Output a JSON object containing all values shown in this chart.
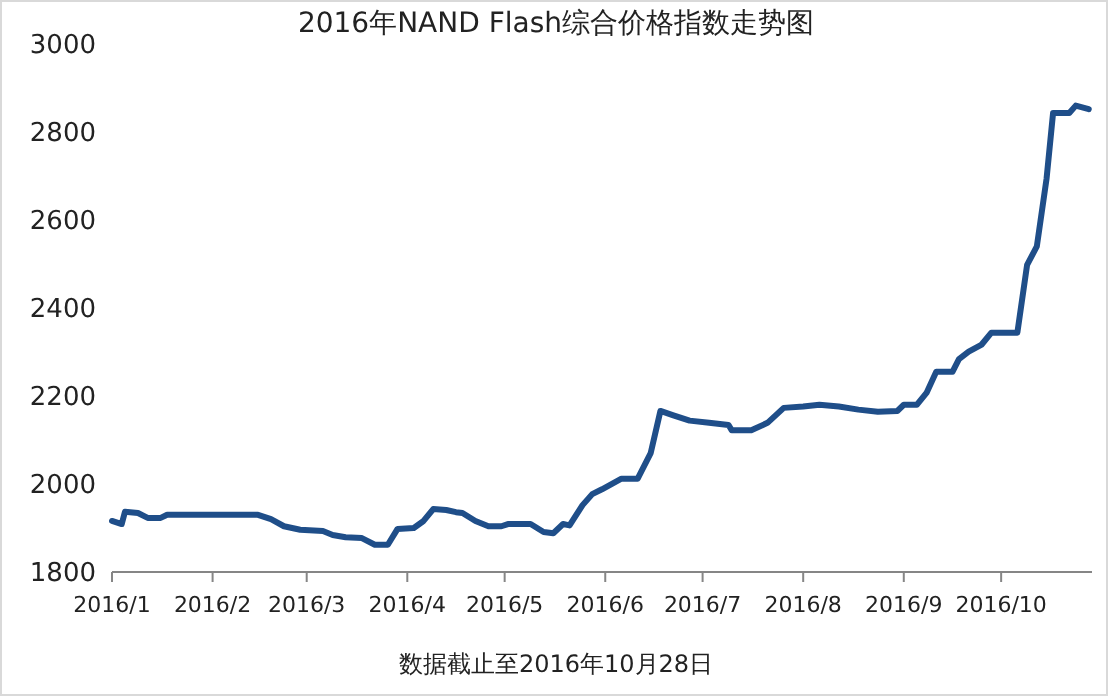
{
  "chart_data": {
    "type": "line",
    "title": "2016年NAND Flash综合价格指数走势图",
    "x": [
      "2016-01-01",
      "2016-01-04",
      "2016-01-05",
      "2016-01-09",
      "2016-01-12",
      "2016-01-16",
      "2016-01-18",
      "2016-02-15",
      "2016-02-19",
      "2016-02-23",
      "2016-02-28",
      "2016-03-06",
      "2016-03-09",
      "2016-03-13",
      "2016-03-18",
      "2016-03-22",
      "2016-03-26",
      "2016-03-29",
      "2016-04-03",
      "2016-04-06",
      "2016-04-09",
      "2016-04-13",
      "2016-04-16",
      "2016-04-18",
      "2016-04-22",
      "2016-04-26",
      "2016-04-30",
      "2016-05-02",
      "2016-05-09",
      "2016-05-13",
      "2016-05-16",
      "2016-05-19",
      "2016-05-21",
      "2016-05-25",
      "2016-05-28",
      "2016-05-31",
      "2016-06-06",
      "2016-06-11",
      "2016-06-15",
      "2016-06-18",
      "2016-06-22",
      "2016-06-27",
      "2016-07-03",
      "2016-07-09",
      "2016-07-10",
      "2016-07-16",
      "2016-07-21",
      "2016-07-26",
      "2016-08-01",
      "2016-08-06",
      "2016-08-12",
      "2016-08-18",
      "2016-08-24",
      "2016-08-30",
      "2016-09-01",
      "2016-09-05",
      "2016-09-08",
      "2016-09-11",
      "2016-09-16",
      "2016-09-18",
      "2016-09-21",
      "2016-09-25",
      "2016-09-28",
      "2016-10-06",
      "2016-10-09",
      "2016-10-12",
      "2016-10-15",
      "2016-10-17",
      "2016-10-22",
      "2016-10-24",
      "2016-10-28"
    ],
    "series": [
      {
        "color": "#1f4e89",
        "values": [
          1916,
          1909,
          1937,
          1934,
          1923,
          1923,
          1930,
          1930,
          1920,
          1904,
          1896,
          1893,
          1884,
          1879,
          1877,
          1862,
          1862,
          1898,
          1900,
          1916,
          1943,
          1941,
          1936,
          1934,
          1916,
          1904,
          1904,
          1909,
          1909,
          1891,
          1888,
          1909,
          1906,
          1952,
          1977,
          1988,
          2012,
          2012,
          2070,
          2166,
          2156,
          2144,
          2139,
          2134,
          2122,
          2122,
          2139,
          2173,
          2176,
          2180,
          2176,
          2169,
          2164,
          2166,
          2180,
          2180,
          2207,
          2255,
          2255,
          2284,
          2301,
          2317,
          2344,
          2344,
          2498,
          2540,
          2694,
          2843,
          2843,
          2860,
          2852
        ]
      }
    ],
    "xlim": [
      "2016-01-01",
      "2016-10-29"
    ],
    "xticks": [
      {
        "value": "2016-01-01",
        "label": "2016/1"
      },
      {
        "value": "2016-02-01",
        "label": "2016/2"
      },
      {
        "value": "2016-03-01",
        "label": "2016/3"
      },
      {
        "value": "2016-04-01",
        "label": "2016/4"
      },
      {
        "value": "2016-05-01",
        "label": "2016/5"
      },
      {
        "value": "2016-06-01",
        "label": "2016/6"
      },
      {
        "value": "2016-07-01",
        "label": "2016/7"
      },
      {
        "value": "2016-08-01",
        "label": "2016/8"
      },
      {
        "value": "2016-09-01",
        "label": "2016/9"
      },
      {
        "value": "2016-10-01",
        "label": "2016/10"
      }
    ],
    "ylim": [
      1800,
      3000
    ],
    "yticks": [
      1800,
      2000,
      2200,
      2400,
      2600,
      2800,
      3000
    ],
    "grid": false,
    "marker": "none",
    "line_style": "solid",
    "annotations": [
      "数据截止至2016年10月28日"
    ]
  }
}
